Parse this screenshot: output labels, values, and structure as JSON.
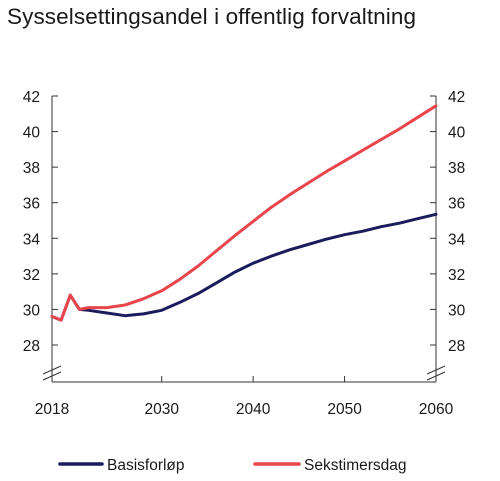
{
  "chart_data": {
    "type": "line",
    "title": "Sysselsettingsandel i offentlig forvaltning",
    "xlabel": "",
    "ylabel": "",
    "xlim": [
      2018,
      2060
    ],
    "ylim": [
      27,
      42
    ],
    "x_ticks": [
      2018,
      2030,
      2040,
      2050,
      2060
    ],
    "y_ticks": [
      28,
      30,
      32,
      34,
      36,
      38,
      40,
      42
    ],
    "y_axis_break": true,
    "grid": false,
    "legend_position": "bottom",
    "series": [
      {
        "name": "Basisforløp",
        "color": "#1b1c5c",
        "points": [
          [
            2018,
            29.6
          ],
          [
            2019,
            29.4
          ],
          [
            2020,
            30.8
          ],
          [
            2021,
            30.0
          ],
          [
            2022,
            29.95
          ],
          [
            2024,
            29.8
          ],
          [
            2026,
            29.65
          ],
          [
            2028,
            29.75
          ],
          [
            2030,
            29.95
          ],
          [
            2032,
            30.4
          ],
          [
            2034,
            30.9
          ],
          [
            2036,
            31.5
          ],
          [
            2038,
            32.1
          ],
          [
            2040,
            32.6
          ],
          [
            2042,
            33.0
          ],
          [
            2044,
            33.35
          ],
          [
            2046,
            33.65
          ],
          [
            2048,
            33.95
          ],
          [
            2050,
            34.2
          ],
          [
            2052,
            34.4
          ],
          [
            2054,
            34.65
          ],
          [
            2056,
            34.85
          ],
          [
            2058,
            35.1
          ],
          [
            2060,
            35.35
          ]
        ]
      },
      {
        "name": "Sekstimersdag",
        "color": "#e8454c",
        "points": [
          [
            2018,
            29.6
          ],
          [
            2019,
            29.4
          ],
          [
            2020,
            30.8
          ],
          [
            2021,
            30.0
          ],
          [
            2022,
            30.1
          ],
          [
            2024,
            30.1
          ],
          [
            2026,
            30.25
          ],
          [
            2028,
            30.6
          ],
          [
            2030,
            31.05
          ],
          [
            2032,
            31.7
          ],
          [
            2034,
            32.45
          ],
          [
            2036,
            33.3
          ],
          [
            2038,
            34.15
          ],
          [
            2040,
            34.95
          ],
          [
            2042,
            35.75
          ],
          [
            2044,
            36.45
          ],
          [
            2046,
            37.1
          ],
          [
            2048,
            37.75
          ],
          [
            2050,
            38.35
          ],
          [
            2052,
            38.95
          ],
          [
            2054,
            39.55
          ],
          [
            2056,
            40.15
          ],
          [
            2058,
            40.8
          ],
          [
            2060,
            41.45
          ]
        ]
      }
    ]
  }
}
